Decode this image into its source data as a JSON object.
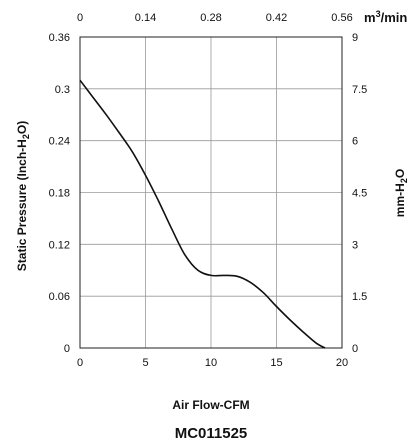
{
  "chart_data": {
    "type": "line",
    "model": "MC011525",
    "grid": true,
    "bottom_axis": {
      "label": "Air Flow-CFM",
      "range": [
        0,
        20
      ],
      "ticks": [
        "0",
        "5",
        "10",
        "15",
        "20"
      ]
    },
    "top_axis": {
      "unit": "m³/min",
      "range": [
        0,
        0.56
      ],
      "ticks": [
        "0",
        "0.14",
        "0.28",
        "0.42",
        "0.56"
      ]
    },
    "left_axis": {
      "label": "Static Pressure (Inch-H₂O)",
      "range": [
        0,
        0.36
      ],
      "ticks": [
        "0",
        "0.06",
        "0.12",
        "0.18",
        "0.24",
        "0.3",
        "0.36"
      ]
    },
    "right_axis": {
      "label": "mm-H₂O",
      "range": [
        0,
        9
      ],
      "ticks": [
        "0",
        "1.5",
        "3",
        "4.5",
        "6",
        "7.5",
        "9"
      ]
    },
    "series": [
      {
        "x": [
          0,
          1,
          2,
          3,
          4,
          5,
          6,
          7,
          8,
          9,
          10,
          11,
          12,
          13,
          14,
          15,
          16,
          17,
          18,
          18.7
        ],
        "y": [
          0.31,
          0.29,
          0.27,
          0.249,
          0.227,
          0.2,
          0.17,
          0.138,
          0.108,
          0.09,
          0.084,
          0.084,
          0.083,
          0.076,
          0.064,
          0.048,
          0.033,
          0.019,
          0.006,
          0.0
        ]
      }
    ]
  }
}
